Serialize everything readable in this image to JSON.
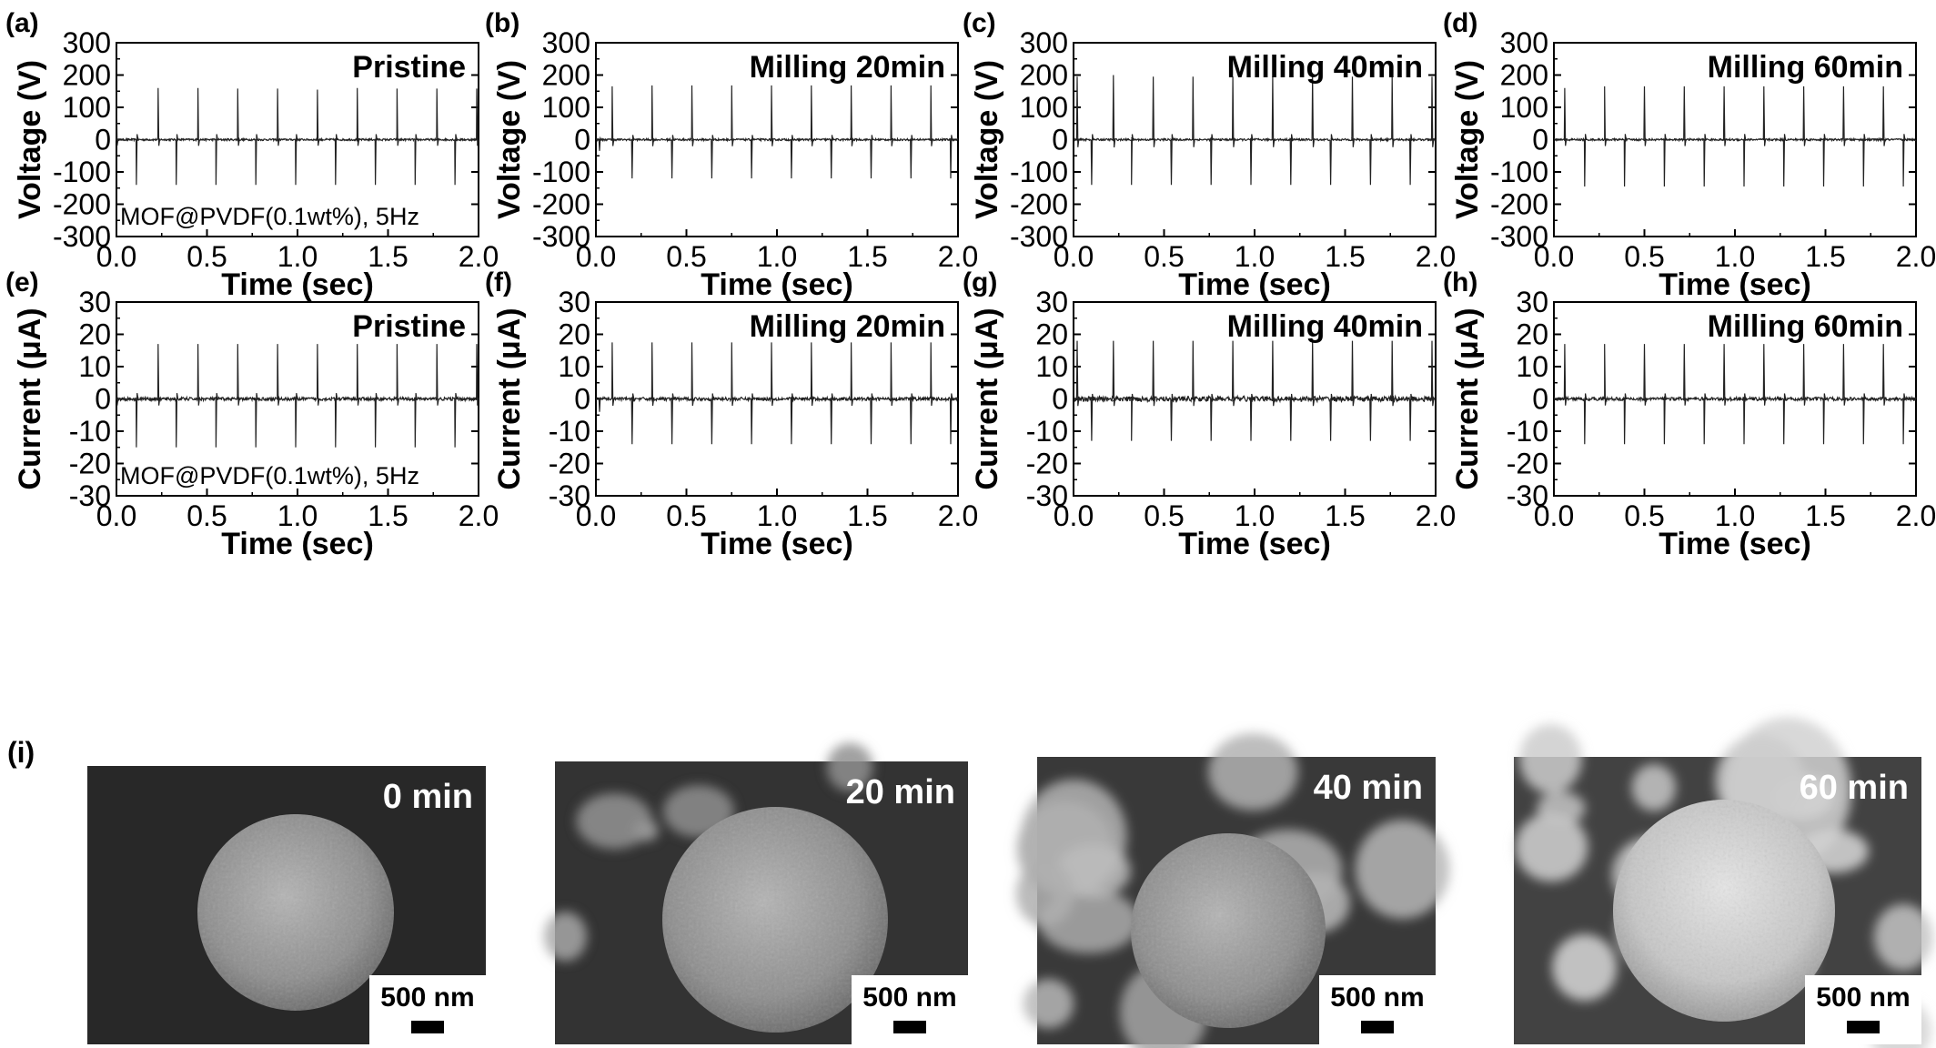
{
  "figure": {
    "sem_label": "(i)"
  },
  "colors": {
    "trace": "#222222",
    "axis": "#000000",
    "sem_background": "#303030"
  },
  "chart_data": [
    {
      "type": "line",
      "panel": "(a)",
      "annotation": "Pristine",
      "sub_annotation": "MOF@PVDF(0.1wt%), 5Hz",
      "xlabel": "Time (sec)",
      "ylabel": "Voltage (V)",
      "xlim": [
        0.0,
        2.0
      ],
      "ylim": [
        -300,
        300
      ],
      "xticks": [
        "0.0",
        "0.5",
        "1.0",
        "1.5",
        "2.0"
      ],
      "yticks": [
        "300",
        "200",
        "100",
        "0",
        "-100",
        "-200",
        "-300"
      ],
      "pos_peak_times": [
        0.0,
        0.23,
        0.45,
        0.67,
        0.89,
        1.11,
        1.33,
        1.55,
        1.77,
        1.99
      ],
      "pos_peak_values": [
        155,
        160,
        160,
        158,
        158,
        155,
        160,
        158,
        158,
        158
      ],
      "neg_peak_times": [
        0.11,
        0.33,
        0.55,
        0.77,
        0.99,
        1.21,
        1.43,
        1.65,
        1.87
      ],
      "neg_peak_values": [
        -140,
        -140,
        -140,
        -140,
        -140,
        -140,
        -140,
        -140,
        -140
      ],
      "noise": 3
    },
    {
      "type": "line",
      "panel": "(b)",
      "annotation": "Milling 20min",
      "xlabel": "Time (sec)",
      "ylabel": "Voltage (V)",
      "xlim": [
        0.0,
        2.0
      ],
      "ylim": [
        -300,
        300
      ],
      "xticks": [
        "0.0",
        "0.5",
        "1.0",
        "1.5",
        "2.0"
      ],
      "yticks": [
        "300",
        "200",
        "100",
        "0",
        "-100",
        "-200",
        "-300"
      ],
      "pos_peak_times": [
        0.09,
        0.31,
        0.53,
        0.75,
        0.97,
        1.19,
        1.41,
        1.63,
        1.85
      ],
      "pos_peak_values": [
        165,
        168,
        168,
        168,
        168,
        168,
        168,
        168,
        168
      ],
      "neg_peak_times": [
        0.02,
        0.2,
        0.42,
        0.64,
        0.86,
        1.08,
        1.3,
        1.52,
        1.74,
        1.96
      ],
      "neg_peak_values": [
        -35,
        -120,
        -120,
        -120,
        -120,
        -120,
        -120,
        -120,
        -120,
        -120
      ],
      "noise": 3
    },
    {
      "type": "line",
      "panel": "(c)",
      "annotation": "Milling 40min",
      "xlabel": "Time (sec)",
      "ylabel": "Voltage (V)",
      "xlim": [
        0.0,
        2.0
      ],
      "ylim": [
        -300,
        300
      ],
      "xticks": [
        "0.0",
        "0.5",
        "1.0",
        "1.5",
        "2.0"
      ],
      "yticks": [
        "300",
        "200",
        "100",
        "0",
        "-100",
        "-200",
        "-300"
      ],
      "pos_peak_times": [
        0.02,
        0.22,
        0.44,
        0.66,
        0.88,
        1.1,
        1.32,
        1.54,
        1.76,
        1.98
      ],
      "pos_peak_values": [
        195,
        200,
        195,
        195,
        195,
        195,
        195,
        195,
        195,
        195
      ],
      "neg_peak_times": [
        0.1,
        0.32,
        0.54,
        0.76,
        0.98,
        1.2,
        1.42,
        1.64,
        1.86
      ],
      "neg_peak_values": [
        -140,
        -140,
        -140,
        -140,
        -140,
        -140,
        -140,
        -140,
        -140
      ],
      "noise": 3
    },
    {
      "type": "line",
      "panel": "(d)",
      "annotation": "Milling 60min",
      "xlabel": "Time (sec)",
      "ylabel": "Voltage (V)",
      "xlim": [
        0.0,
        2.0
      ],
      "ylim": [
        -300,
        300
      ],
      "xticks": [
        "0.0",
        "0.5",
        "1.0",
        "1.5",
        "2.0"
      ],
      "yticks": [
        "300",
        "200",
        "100",
        "0",
        "-100",
        "-200",
        "-300"
      ],
      "pos_peak_times": [
        0.06,
        0.28,
        0.5,
        0.72,
        0.94,
        1.16,
        1.38,
        1.6,
        1.82
      ],
      "pos_peak_values": [
        160,
        165,
        165,
        165,
        165,
        165,
        165,
        165,
        165
      ],
      "neg_peak_times": [
        0.17,
        0.39,
        0.61,
        0.83,
        1.05,
        1.27,
        1.49,
        1.71,
        1.93
      ],
      "neg_peak_values": [
        -145,
        -145,
        -145,
        -145,
        -145,
        -145,
        -145,
        -145,
        -145
      ],
      "noise": 3
    },
    {
      "type": "line",
      "panel": "(e)",
      "annotation": "Pristine",
      "sub_annotation": "MOF@PVDF(0.1wt%), 5Hz",
      "xlabel": "Time (sec)",
      "ylabel": "Current (μA)",
      "xlim": [
        0.0,
        2.0
      ],
      "ylim": [
        -30,
        30
      ],
      "xticks": [
        "0.0",
        "0.5",
        "1.0",
        "1.5",
        "2.0"
      ],
      "yticks": [
        "30",
        "20",
        "10",
        "0",
        "-10",
        "-20",
        "-30"
      ],
      "pos_peak_times": [
        0.0,
        0.23,
        0.45,
        0.67,
        0.89,
        1.11,
        1.33,
        1.55,
        1.77,
        1.99
      ],
      "pos_peak_values": [
        17,
        17,
        17,
        17,
        17,
        17,
        17,
        17,
        17,
        17
      ],
      "neg_peak_times": [
        0.11,
        0.33,
        0.55,
        0.77,
        0.99,
        1.21,
        1.43,
        1.65,
        1.87
      ],
      "neg_peak_values": [
        -15,
        -15,
        -15,
        -15,
        -15,
        -15,
        -15,
        -15,
        -15
      ],
      "noise": 0.5
    },
    {
      "type": "line",
      "panel": "(f)",
      "annotation": "Milling 20min",
      "xlabel": "Time (sec)",
      "ylabel": "Current (μA)",
      "xlim": [
        0.0,
        2.0
      ],
      "ylim": [
        -30,
        30
      ],
      "xticks": [
        "0.0",
        "0.5",
        "1.0",
        "1.5",
        "2.0"
      ],
      "yticks": [
        "30",
        "20",
        "10",
        "0",
        "-10",
        "-20",
        "-30"
      ],
      "pos_peak_times": [
        0.09,
        0.31,
        0.53,
        0.75,
        0.97,
        1.19,
        1.41,
        1.63,
        1.85
      ],
      "pos_peak_values": [
        17.5,
        17.5,
        17.5,
        17.5,
        17.5,
        17.5,
        17.5,
        17.5,
        17.5
      ],
      "neg_peak_times": [
        0.02,
        0.2,
        0.42,
        0.64,
        0.86,
        1.08,
        1.3,
        1.52,
        1.74,
        1.96
      ],
      "neg_peak_values": [
        -4,
        -14,
        -14,
        -14,
        -14,
        -14,
        -14,
        -14,
        -14,
        -14
      ],
      "noise": 0.5
    },
    {
      "type": "line",
      "panel": "(g)",
      "annotation": "Milling 40min",
      "xlabel": "Time (sec)",
      "ylabel": "Current (μA)",
      "xlim": [
        0.0,
        2.0
      ],
      "ylim": [
        -30,
        30
      ],
      "xticks": [
        "0.0",
        "0.5",
        "1.0",
        "1.5",
        "2.0"
      ],
      "yticks": [
        "30",
        "20",
        "10",
        "0",
        "-10",
        "-20",
        "-30"
      ],
      "pos_peak_times": [
        0.02,
        0.22,
        0.44,
        0.66,
        0.88,
        1.1,
        1.32,
        1.54,
        1.76,
        1.98
      ],
      "pos_peak_values": [
        18,
        18,
        18,
        18,
        18,
        18,
        18,
        18,
        18,
        18
      ],
      "neg_peak_times": [
        0.1,
        0.32,
        0.54,
        0.76,
        0.98,
        1.2,
        1.42,
        1.64,
        1.86
      ],
      "neg_peak_values": [
        -13,
        -13,
        -13,
        -13,
        -13,
        -13,
        -13,
        -13,
        -13
      ],
      "noise": 0.8
    },
    {
      "type": "line",
      "panel": "(h)",
      "annotation": "Milling 60min",
      "xlabel": "Time (sec)",
      "ylabel": "Current (μA)",
      "xlim": [
        0.0,
        2.0
      ],
      "ylim": [
        -30,
        30
      ],
      "xticks": [
        "0.0",
        "0.5",
        "1.0",
        "1.5",
        "2.0"
      ],
      "yticks": [
        "30",
        "20",
        "10",
        "0",
        "-10",
        "-20",
        "-30"
      ],
      "pos_peak_times": [
        0.06,
        0.28,
        0.5,
        0.72,
        0.94,
        1.16,
        1.38,
        1.6,
        1.82
      ],
      "pos_peak_values": [
        17,
        17,
        17,
        17,
        17,
        17,
        17,
        17,
        17
      ],
      "neg_peak_times": [
        0.17,
        0.39,
        0.61,
        0.83,
        1.05,
        1.27,
        1.49,
        1.71,
        1.93
      ],
      "neg_peak_values": [
        -14,
        -14,
        -14,
        -14,
        -14,
        -14,
        -14,
        -14,
        -14
      ],
      "noise": 0.5
    }
  ],
  "sem_images": [
    {
      "label": "0 min",
      "scale_bar": "500 nm",
      "brightness": 0.0
    },
    {
      "label": "20 min",
      "scale_bar": "500 nm",
      "brightness": 0.35
    },
    {
      "label": "40 min",
      "scale_bar": "500 nm",
      "brightness": 0.55
    },
    {
      "label": "60 min",
      "scale_bar": "500 nm",
      "brightness": 0.85
    }
  ]
}
